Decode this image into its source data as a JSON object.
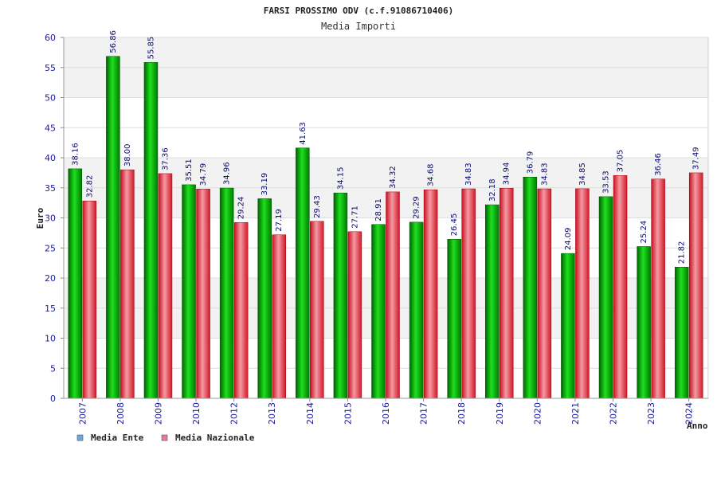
{
  "chart_data": {
    "type": "bar",
    "title": "FARSI PROSSIMO ODV (c.f.91086710406)",
    "subtitle": "Media Importi",
    "xlabel": "Anno",
    "ylabel": "Euro",
    "ylim": [
      0,
      60
    ],
    "yticks": [
      0,
      5,
      10,
      15,
      20,
      25,
      30,
      35,
      40,
      45,
      50,
      55,
      60
    ],
    "grid": true,
    "legend_position": "bottom-left",
    "categories": [
      "2007",
      "2008",
      "2009",
      "2010",
      "2012",
      "2013",
      "2014",
      "2015",
      "2016",
      "2017",
      "2018",
      "2019",
      "2020",
      "2021",
      "2022",
      "2023",
      "2024"
    ],
    "series": [
      {
        "name": "Media Ente",
        "color": "#00a000",
        "legend_color": "#6aa7e8",
        "values": [
          38.16,
          56.86,
          55.85,
          35.51,
          34.96,
          33.19,
          41.63,
          34.15,
          28.91,
          29.29,
          26.45,
          32.18,
          36.79,
          24.09,
          33.53,
          25.24,
          21.82
        ],
        "labels": [
          "38.16",
          "56.86",
          "55.85",
          "35.51",
          "34.96",
          "33.19",
          "41.63",
          "34.15",
          "28.91",
          "29.29",
          "26.45",
          "32.18",
          "36.79",
          "24.09",
          "33.53",
          "25.24",
          "21.82"
        ]
      },
      {
        "name": "Media Nazionale",
        "color": "#e02030",
        "legend_color": "#e07aa8",
        "values": [
          32.82,
          38.0,
          37.36,
          34.79,
          29.24,
          27.19,
          29.43,
          27.71,
          34.32,
          34.68,
          34.83,
          34.94,
          34.83,
          34.85,
          37.05,
          36.46,
          37.49
        ],
        "labels": [
          "32.82",
          "38.00",
          "37.36",
          "34.79",
          "29.24",
          "27.19",
          "29.43",
          "27.71",
          "34.32",
          "34.68",
          "34.83",
          "34.94",
          "34.83",
          "34.85",
          "37.05",
          "36.46",
          "37.49"
        ]
      }
    ]
  }
}
